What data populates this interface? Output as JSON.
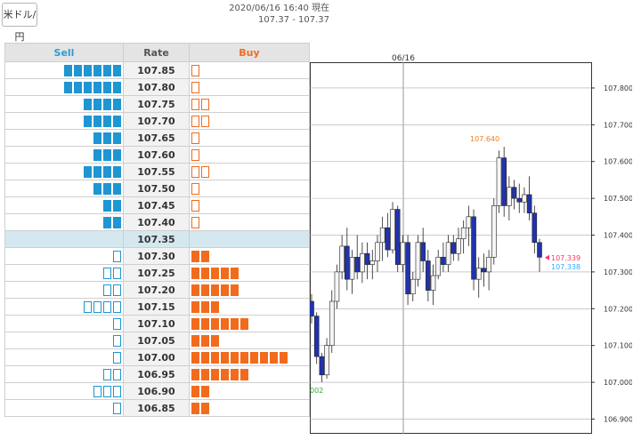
{
  "pair_button": {
    "label": "米ドル/円"
  },
  "header": {
    "timestamp": "2020/06/16 16:40 現在",
    "bid_ask": "107.37 - 107.37"
  },
  "book": {
    "headers": {
      "sell": "Sell",
      "rate": "Rate",
      "buy": "Buy"
    },
    "current_rate": "107.35",
    "rows": [
      {
        "rate": "107.85",
        "sell_filled": 6,
        "sell_outline": 0,
        "buy_filled": 0,
        "buy_outline": 1
      },
      {
        "rate": "107.80",
        "sell_filled": 6,
        "sell_outline": 0,
        "buy_filled": 0,
        "buy_outline": 1
      },
      {
        "rate": "107.75",
        "sell_filled": 4,
        "sell_outline": 0,
        "buy_filled": 0,
        "buy_outline": 2
      },
      {
        "rate": "107.70",
        "sell_filled": 4,
        "sell_outline": 0,
        "buy_filled": 0,
        "buy_outline": 2
      },
      {
        "rate": "107.65",
        "sell_filled": 3,
        "sell_outline": 0,
        "buy_filled": 0,
        "buy_outline": 1
      },
      {
        "rate": "107.60",
        "sell_filled": 3,
        "sell_outline": 0,
        "buy_filled": 0,
        "buy_outline": 1
      },
      {
        "rate": "107.55",
        "sell_filled": 4,
        "sell_outline": 0,
        "buy_filled": 0,
        "buy_outline": 2
      },
      {
        "rate": "107.50",
        "sell_filled": 3,
        "sell_outline": 0,
        "buy_filled": 0,
        "buy_outline": 1
      },
      {
        "rate": "107.45",
        "sell_filled": 2,
        "sell_outline": 0,
        "buy_filled": 0,
        "buy_outline": 1
      },
      {
        "rate": "107.40",
        "sell_filled": 2,
        "sell_outline": 0,
        "buy_filled": 0,
        "buy_outline": 1
      },
      {
        "rate": "107.35",
        "sell_filled": 0,
        "sell_outline": 0,
        "buy_filled": 0,
        "buy_outline": 0
      },
      {
        "rate": "107.30",
        "sell_filled": 0,
        "sell_outline": 1,
        "buy_filled": 2,
        "buy_outline": 0
      },
      {
        "rate": "107.25",
        "sell_filled": 0,
        "sell_outline": 2,
        "buy_filled": 5,
        "buy_outline": 0
      },
      {
        "rate": "107.20",
        "sell_filled": 0,
        "sell_outline": 2,
        "buy_filled": 5,
        "buy_outline": 0
      },
      {
        "rate": "107.15",
        "sell_filled": 0,
        "sell_outline": 4,
        "buy_filled": 3,
        "buy_outline": 0
      },
      {
        "rate": "107.10",
        "sell_filled": 0,
        "sell_outline": 1,
        "buy_filled": 6,
        "buy_outline": 0
      },
      {
        "rate": "107.05",
        "sell_filled": 0,
        "sell_outline": 1,
        "buy_filled": 3,
        "buy_outline": 0
      },
      {
        "rate": "107.00",
        "sell_filled": 0,
        "sell_outline": 1,
        "buy_filled": 10,
        "buy_outline": 0
      },
      {
        "rate": "106.95",
        "sell_filled": 0,
        "sell_outline": 2,
        "buy_filled": 6,
        "buy_outline": 0
      },
      {
        "rate": "106.90",
        "sell_filled": 0,
        "sell_outline": 3,
        "buy_filled": 2,
        "buy_outline": 0
      },
      {
        "rate": "106.85",
        "sell_filled": 0,
        "sell_outline": 1,
        "buy_filled": 2,
        "buy_outline": 0
      }
    ]
  },
  "chart_data": {
    "type": "candlestick",
    "date_label": "06/16",
    "ylim": [
      106.86,
      107.87
    ],
    "y_ticks": [
      "107.800",
      "107.700",
      "107.600",
      "107.500",
      "107.400",
      "107.300",
      "107.200",
      "107.100",
      "107.000",
      "106.900"
    ],
    "annotations": {
      "high": "107.640",
      "low": "002",
      "last_bid": "107.339",
      "last_ask": "107.338"
    },
    "colors": {
      "up": "#f5f5f5",
      "down": "#2233aa",
      "high_label": "#e8802a",
      "low_label": "#33aa33",
      "bid": "#ff3366",
      "ask": "#33aaff"
    },
    "candles": [
      [
        107.22,
        107.24,
        107.16,
        107.18
      ],
      [
        107.18,
        107.19,
        107.05,
        107.07
      ],
      [
        107.07,
        107.08,
        107.0,
        107.02
      ],
      [
        107.02,
        107.12,
        107.01,
        107.1
      ],
      [
        107.1,
        107.25,
        107.08,
        107.22
      ],
      [
        107.22,
        107.32,
        107.2,
        107.3
      ],
      [
        107.3,
        107.4,
        107.28,
        107.37
      ],
      [
        107.37,
        107.42,
        107.25,
        107.28
      ],
      [
        107.28,
        107.36,
        107.24,
        107.34
      ],
      [
        107.34,
        107.4,
        107.28,
        107.3
      ],
      [
        107.3,
        107.38,
        107.27,
        107.35
      ],
      [
        107.35,
        107.38,
        107.28,
        107.32
      ],
      [
        107.32,
        107.36,
        107.28,
        107.33
      ],
      [
        107.33,
        107.4,
        107.3,
        107.38
      ],
      [
        107.38,
        107.45,
        107.33,
        107.42
      ],
      [
        107.42,
        107.46,
        107.34,
        107.36
      ],
      [
        107.36,
        107.49,
        107.35,
        107.47
      ],
      [
        107.47,
        107.48,
        107.3,
        107.32
      ],
      [
        107.32,
        107.4,
        107.3,
        107.38
      ],
      [
        107.38,
        107.4,
        107.21,
        107.24
      ],
      [
        107.24,
        107.3,
        107.22,
        107.28
      ],
      [
        107.28,
        107.4,
        107.26,
        107.38
      ],
      [
        107.38,
        107.42,
        107.3,
        107.33
      ],
      [
        107.33,
        107.36,
        107.22,
        107.25
      ],
      [
        107.25,
        107.32,
        107.21,
        107.29
      ],
      [
        107.29,
        107.36,
        107.28,
        107.34
      ],
      [
        107.34,
        107.38,
        107.3,
        107.32
      ],
      [
        107.32,
        107.4,
        107.3,
        107.38
      ],
      [
        107.38,
        107.4,
        107.33,
        107.35
      ],
      [
        107.35,
        107.42,
        107.33,
        107.39
      ],
      [
        107.39,
        107.44,
        107.35,
        107.42
      ],
      [
        107.42,
        107.48,
        107.37,
        107.45
      ],
      [
        107.45,
        107.47,
        107.25,
        107.28
      ],
      [
        107.28,
        107.34,
        107.23,
        107.31
      ],
      [
        107.31,
        107.35,
        107.26,
        107.3
      ],
      [
        107.3,
        107.36,
        107.25,
        107.34
      ],
      [
        107.34,
        107.5,
        107.32,
        107.48
      ],
      [
        107.48,
        107.63,
        107.46,
        107.61
      ],
      [
        107.61,
        107.64,
        107.45,
        107.48
      ],
      [
        107.48,
        107.56,
        107.44,
        107.53
      ],
      [
        107.53,
        107.55,
        107.47,
        107.5
      ],
      [
        107.5,
        107.54,
        107.46,
        107.49
      ],
      [
        107.49,
        107.53,
        107.46,
        107.51
      ],
      [
        107.51,
        107.56,
        107.44,
        107.46
      ],
      [
        107.46,
        107.48,
        107.35,
        107.38
      ],
      [
        107.38,
        107.39,
        107.3,
        107.34
      ]
    ]
  }
}
